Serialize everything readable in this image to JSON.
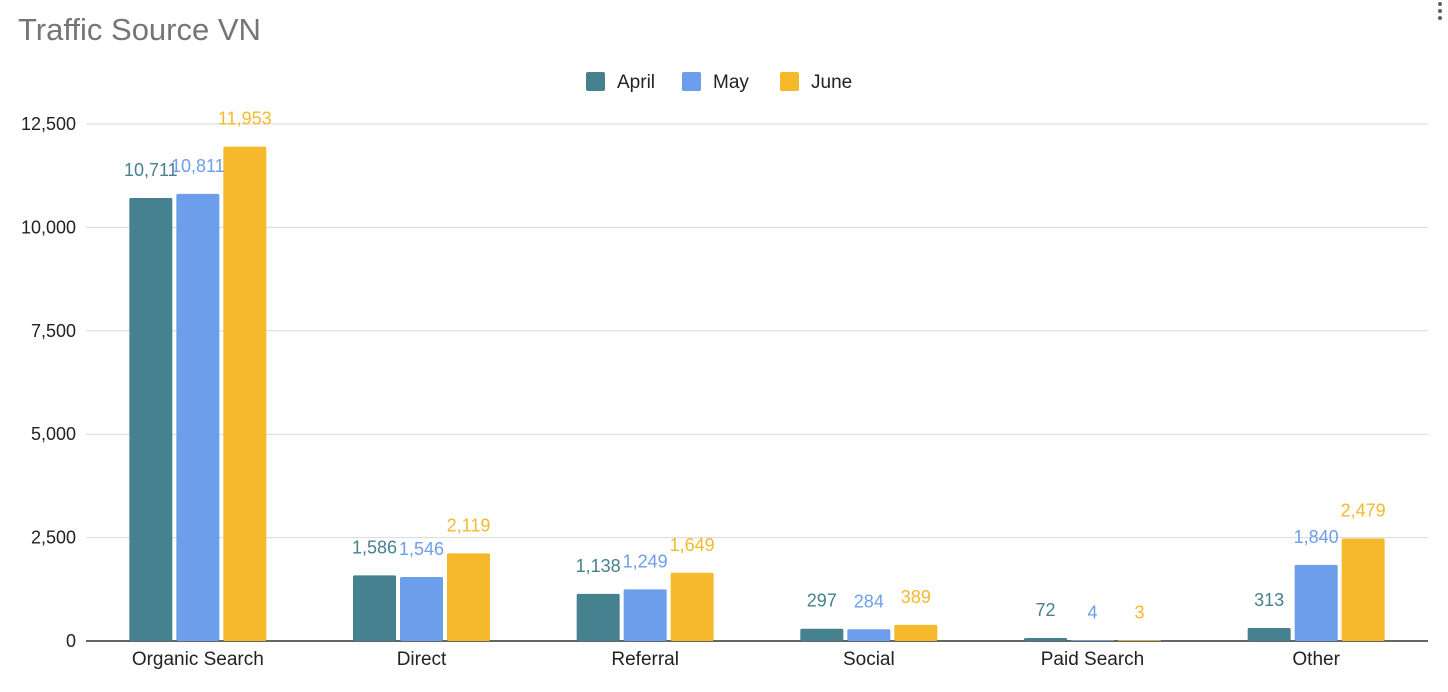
{
  "chart_data": {
    "type": "bar",
    "title": "Traffic Source VN",
    "categories": [
      "Organic Search",
      "Direct",
      "Referral",
      "Social",
      "Paid Search",
      "Other"
    ],
    "series": [
      {
        "name": "April",
        "color": "#45818e",
        "values": [
          10711,
          1586,
          1138,
          297,
          72,
          313
        ],
        "labels": [
          "10,711",
          "1,586",
          "1,138",
          "297",
          "72",
          "313"
        ]
      },
      {
        "name": "May",
        "color": "#6d9eeb",
        "values": [
          10811,
          1546,
          1249,
          284,
          4,
          1840
        ],
        "labels": [
          "10,811",
          "1,546",
          "1,249",
          "284",
          "4",
          "1,840"
        ]
      },
      {
        "name": "June",
        "color": "#f6b92b",
        "values": [
          11953,
          2119,
          1649,
          389,
          3,
          2479
        ],
        "labels": [
          "11,953",
          "2,119",
          "1,649",
          "389",
          "3",
          "2,479"
        ]
      }
    ],
    "yticks": [
      "0",
      "2,500",
      "5,000",
      "7,500",
      "10,000",
      "12,500"
    ],
    "ylim": [
      0,
      12500
    ],
    "xlabel": "",
    "ylabel": "",
    "grid": true,
    "legend_position": "top-center"
  },
  "icons": {
    "menu": "more-vert-icon"
  }
}
